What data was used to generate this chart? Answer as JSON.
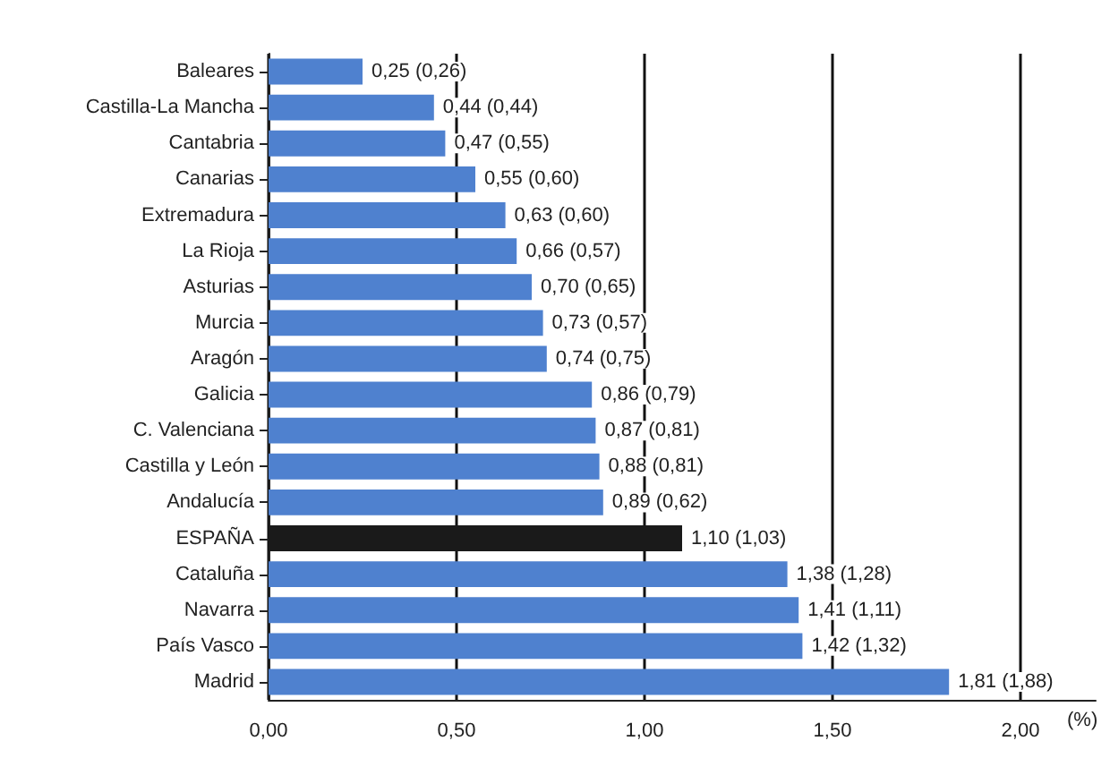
{
  "chart_data": {
    "type": "bar",
    "orientation": "horizontal",
    "xlabel": "(%)",
    "categories": [
      "Baleares",
      "Castilla-La Mancha",
      "Cantabria",
      "Canarias",
      "Extremadura",
      "La Rioja",
      "Asturias",
      "Murcia",
      "Aragón",
      "Galicia",
      "C. Valenciana",
      "Castilla y León",
      "Andalucía",
      "ESPAÑA",
      "Cataluña",
      "Navarra",
      "País Vasco",
      "Madrid"
    ],
    "values": [
      0.25,
      0.44,
      0.47,
      0.55,
      0.63,
      0.66,
      0.7,
      0.73,
      0.74,
      0.86,
      0.87,
      0.88,
      0.89,
      1.1,
      1.38,
      1.41,
      1.42,
      1.81
    ],
    "colors": [
      "#4f81cf",
      "#4f81cf",
      "#4f81cf",
      "#4f81cf",
      "#4f81cf",
      "#4f81cf",
      "#4f81cf",
      "#4f81cf",
      "#4f81cf",
      "#4f81cf",
      "#4f81cf",
      "#4f81cf",
      "#4f81cf",
      "#1a1a1a",
      "#4f81cf",
      "#4f81cf",
      "#4f81cf",
      "#4f81cf"
    ],
    "value_labels": [
      "0,25 (0,26)",
      "0,44 (0,44)",
      "0,47 (0,55)",
      "0,55 (0,60)",
      "0,63 (0,60)",
      "0,66 (0,57)",
      "0,70 (0,65)",
      "0,73 (0,57)",
      "0,74 (0,75)",
      "0,86 (0,79)",
      "0,87 (0,81)",
      "0,88 (0,81)",
      "0,89 (0,62)",
      "1,10 (1,03)",
      "1,38 (1,28)",
      "1,41 (1,11)",
      "1,42 (1,32)",
      "1,81 (1,88)"
    ],
    "xlim": [
      0,
      2.2
    ],
    "xticks": [
      {
        "value": 0,
        "label": "0,00"
      },
      {
        "value": 0.5,
        "label": "0,50"
      },
      {
        "value": 1,
        "label": "1,00"
      },
      {
        "value": 1.5,
        "label": "1,50"
      },
      {
        "value": 2,
        "label": "2,00"
      }
    ],
    "grid": "x"
  }
}
